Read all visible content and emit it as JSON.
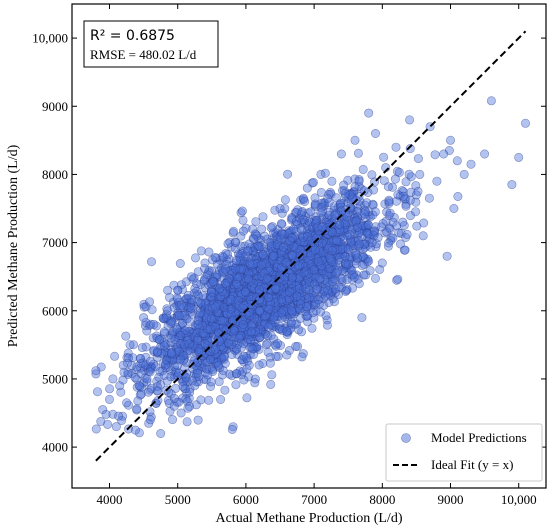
{
  "chart_data": {
    "type": "scatter",
    "xlabel": "Actual Methane Production (L/d)",
    "ylabel": "Predicted Methane Production (L/d)",
    "xlim": [
      3450,
      10400
    ],
    "ylim": [
      3400,
      10500
    ],
    "x_ticks": [
      4000,
      5000,
      6000,
      7000,
      8000,
      9000,
      10000
    ],
    "x_tick_labels": [
      "4000",
      "5000",
      "6000",
      "7000",
      "8000",
      "9000",
      "10,000"
    ],
    "y_ticks": [
      4000,
      5000,
      6000,
      7000,
      8000,
      9000,
      10000
    ],
    "y_tick_labels": [
      "4000",
      "5000",
      "6000",
      "7000",
      "8000",
      "9000",
      "10,000"
    ],
    "grid": false,
    "legend_position": "bottom-right",
    "series": [
      {
        "name": "Model Predictions",
        "kind": "scatter",
        "color": "#4a6fd8",
        "edge_color": "#2c3e8f",
        "sampled_points": [
          [
            3800,
            5120
          ],
          [
            3900,
            4550
          ],
          [
            3950,
            4480
          ],
          [
            4000,
            4700
          ],
          [
            4050,
            5000
          ],
          [
            4100,
            4300
          ],
          [
            4150,
            4900
          ],
          [
            4200,
            5200
          ],
          [
            4250,
            4650
          ],
          [
            4300,
            5500
          ],
          [
            4380,
            4250
          ],
          [
            4450,
            5300
          ],
          [
            4500,
            5900
          ],
          [
            4550,
            5000
          ],
          [
            4600,
            4400
          ],
          [
            4650,
            5800
          ],
          [
            4700,
            5400
          ],
          [
            4750,
            4200
          ],
          [
            4800,
            5050
          ],
          [
            4850,
            6000
          ],
          [
            4900,
            5600
          ],
          [
            4950,
            4600
          ],
          [
            5000,
            6300
          ],
          [
            5050,
            4500
          ],
          [
            5100,
            5500
          ],
          [
            5200,
            6500
          ],
          [
            5250,
            4900
          ],
          [
            5300,
            5800
          ],
          [
            5400,
            6700
          ],
          [
            5500,
            6200
          ],
          [
            5550,
            6780
          ],
          [
            5600,
            5200
          ],
          [
            5700,
            6400
          ],
          [
            5800,
            4260
          ],
          [
            5850,
            7000
          ],
          [
            5900,
            5600
          ],
          [
            6000,
            6800
          ],
          [
            6050,
            5200
          ],
          [
            6100,
            7200
          ],
          [
            6200,
            6000
          ],
          [
            6250,
            7380
          ],
          [
            6300,
            5500
          ],
          [
            6400,
            6800
          ],
          [
            6500,
            7500
          ],
          [
            6600,
            5700
          ],
          [
            6700,
            7200
          ],
          [
            6800,
            6100
          ],
          [
            6900,
            7800
          ],
          [
            7000,
            6600
          ],
          [
            7100,
            8000
          ],
          [
            7200,
            6300
          ],
          [
            7300,
            7400
          ],
          [
            7400,
            8300
          ],
          [
            7500,
            6900
          ],
          [
            7600,
            8500
          ],
          [
            7700,
            5900
          ],
          [
            7800,
            8900
          ],
          [
            7850,
            7000
          ],
          [
            7900,
            8600
          ],
          [
            8000,
            6700
          ],
          [
            8050,
            8100
          ],
          [
            8100,
            7600
          ],
          [
            8200,
            8400
          ],
          [
            8300,
            7300
          ],
          [
            8400,
            8800
          ],
          [
            8500,
            7700
          ],
          [
            8550,
            8000
          ],
          [
            8600,
            7100
          ],
          [
            8700,
            8700
          ],
          [
            8800,
            7900
          ],
          [
            8900,
            8300
          ],
          [
            8950,
            6800
          ],
          [
            9000,
            8500
          ],
          [
            9050,
            7500
          ],
          [
            9100,
            8200
          ],
          [
            9200,
            8000
          ],
          [
            9300,
            8150
          ],
          [
            9500,
            8300
          ],
          [
            9600,
            9080
          ],
          [
            9900,
            7850
          ],
          [
            10000,
            8250
          ],
          [
            10100,
            8750
          ]
        ]
      },
      {
        "name": "Ideal Fit (y = x)",
        "kind": "line",
        "style": "dashed",
        "color": "#000000",
        "x": [
          3800,
          10100
        ],
        "y": [
          3800,
          10100
        ]
      }
    ],
    "annotations": {
      "r2": "R² = 0.6875",
      "rmse": "RMSE = 480.02 L/d"
    }
  }
}
